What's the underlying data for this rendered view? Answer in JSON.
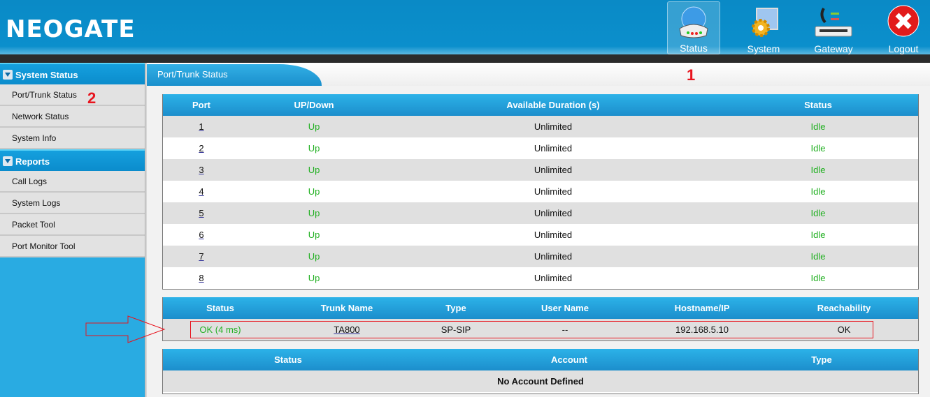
{
  "header": {
    "logo": "NEOGATE",
    "nav": [
      {
        "label": "Status",
        "icon": "status-globe-router-icon",
        "active": true
      },
      {
        "label": "System",
        "icon": "system-gear-monitor-icon"
      },
      {
        "label": "Gateway",
        "icon": "gateway-phone-icon"
      },
      {
        "label": "Logout",
        "icon": "logout-x-icon"
      }
    ]
  },
  "sidebar": {
    "sections": [
      {
        "title": "System Status",
        "items": [
          "Port/Trunk Status",
          "Network Status",
          "System Info"
        ]
      },
      {
        "title": "Reports",
        "items": [
          "Call Logs",
          "System Logs",
          "Packet Tool",
          "Port Monitor Tool"
        ]
      }
    ]
  },
  "main": {
    "title": "Port/Trunk Status",
    "ports": {
      "headers": [
        "Port",
        "UP/Down",
        "Available Duration (s)",
        "Status"
      ],
      "rows": [
        [
          "1",
          "Up",
          "Unlimited",
          "Idle"
        ],
        [
          "2",
          "Up",
          "Unlimited",
          "Idle"
        ],
        [
          "3",
          "Up",
          "Unlimited",
          "Idle"
        ],
        [
          "4",
          "Up",
          "Unlimited",
          "Idle"
        ],
        [
          "5",
          "Up",
          "Unlimited",
          "Idle"
        ],
        [
          "6",
          "Up",
          "Unlimited",
          "Idle"
        ],
        [
          "7",
          "Up",
          "Unlimited",
          "Idle"
        ],
        [
          "8",
          "Up",
          "Unlimited",
          "Idle"
        ]
      ]
    },
    "trunks": {
      "headers": [
        "Status",
        "Trunk Name",
        "Type",
        "User Name",
        "Hostname/IP",
        "Reachability"
      ],
      "rows": [
        [
          "OK (4 ms)",
          "TA800",
          "SP-SIP",
          "--",
          "192.168.5.10",
          "OK"
        ]
      ]
    },
    "accounts": {
      "headers": [
        "Status",
        "Account",
        "Type"
      ],
      "empty": "No Account Defined"
    }
  },
  "annotations": {
    "one": "1",
    "two": "2"
  },
  "colors": {
    "accent": "#1c8ecc",
    "ok_green": "#22b022",
    "annotation_red": "#e8141e"
  }
}
